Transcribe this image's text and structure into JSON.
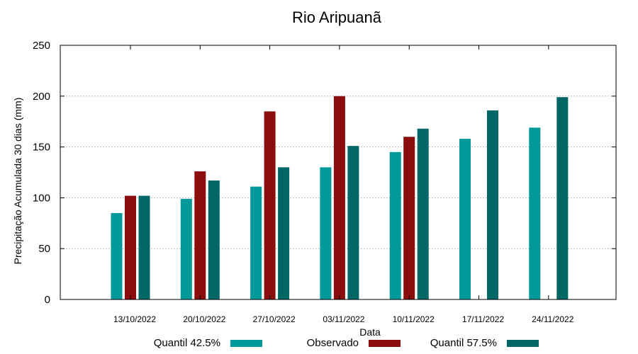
{
  "chart_data": {
    "type": "bar",
    "title": "Rio Aripuanã",
    "xlabel": "Data",
    "ylabel": "Precipitação Acumulada 30 dias (mm)",
    "ylim": [
      0,
      250
    ],
    "yticks": [
      0,
      50,
      100,
      150,
      200,
      250
    ],
    "grid": true,
    "legend_position": "bottom",
    "categories": [
      "13/10/2022",
      "20/10/2022",
      "27/10/2022",
      "03/11/2022",
      "10/11/2022",
      "17/11/2022",
      "24/11/2022"
    ],
    "series": [
      {
        "name": "Quantil 42.5%",
        "color": "#009999",
        "values": [
          85,
          99,
          111,
          130,
          145,
          158,
          169
        ]
      },
      {
        "name": "Observado",
        "color": "#8b0d0d",
        "values": [
          102,
          126,
          185,
          200,
          160,
          null,
          null
        ]
      },
      {
        "name": "Quantil 57.5%",
        "color": "#006666",
        "values": [
          102,
          117,
          130,
          151,
          168,
          186,
          199
        ]
      }
    ]
  }
}
